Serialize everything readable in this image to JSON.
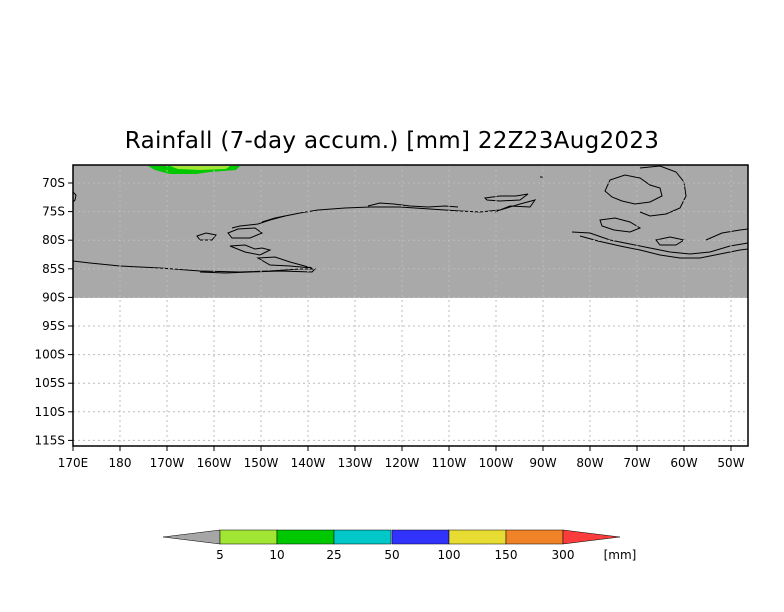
{
  "title": "Rainfall (7-day accum.) [mm] 22Z23Aug2023",
  "map": {
    "lat_labels": [
      "70S",
      "75S",
      "80S",
      "85S",
      "90S",
      "95S",
      "100S",
      "105S",
      "110S",
      "115S"
    ],
    "lon_labels": [
      "170E",
      "180",
      "170W",
      "160W",
      "150W",
      "140W",
      "130W",
      "120W",
      "110W",
      "100W",
      "90W",
      "80W",
      "70W",
      "60W",
      "50W"
    ],
    "land_color": "#a9a9a9",
    "grid": true
  },
  "legend": {
    "unit": "[mm]",
    "thresholds": [
      "5",
      "10",
      "25",
      "50",
      "100",
      "150",
      "300"
    ],
    "colors": [
      "#a6a6a6",
      "#a0e632",
      "#00c800",
      "#00c8c8",
      "#3232ff",
      "#e6dc32",
      "#f08228",
      "#fa3c3c"
    ]
  }
}
